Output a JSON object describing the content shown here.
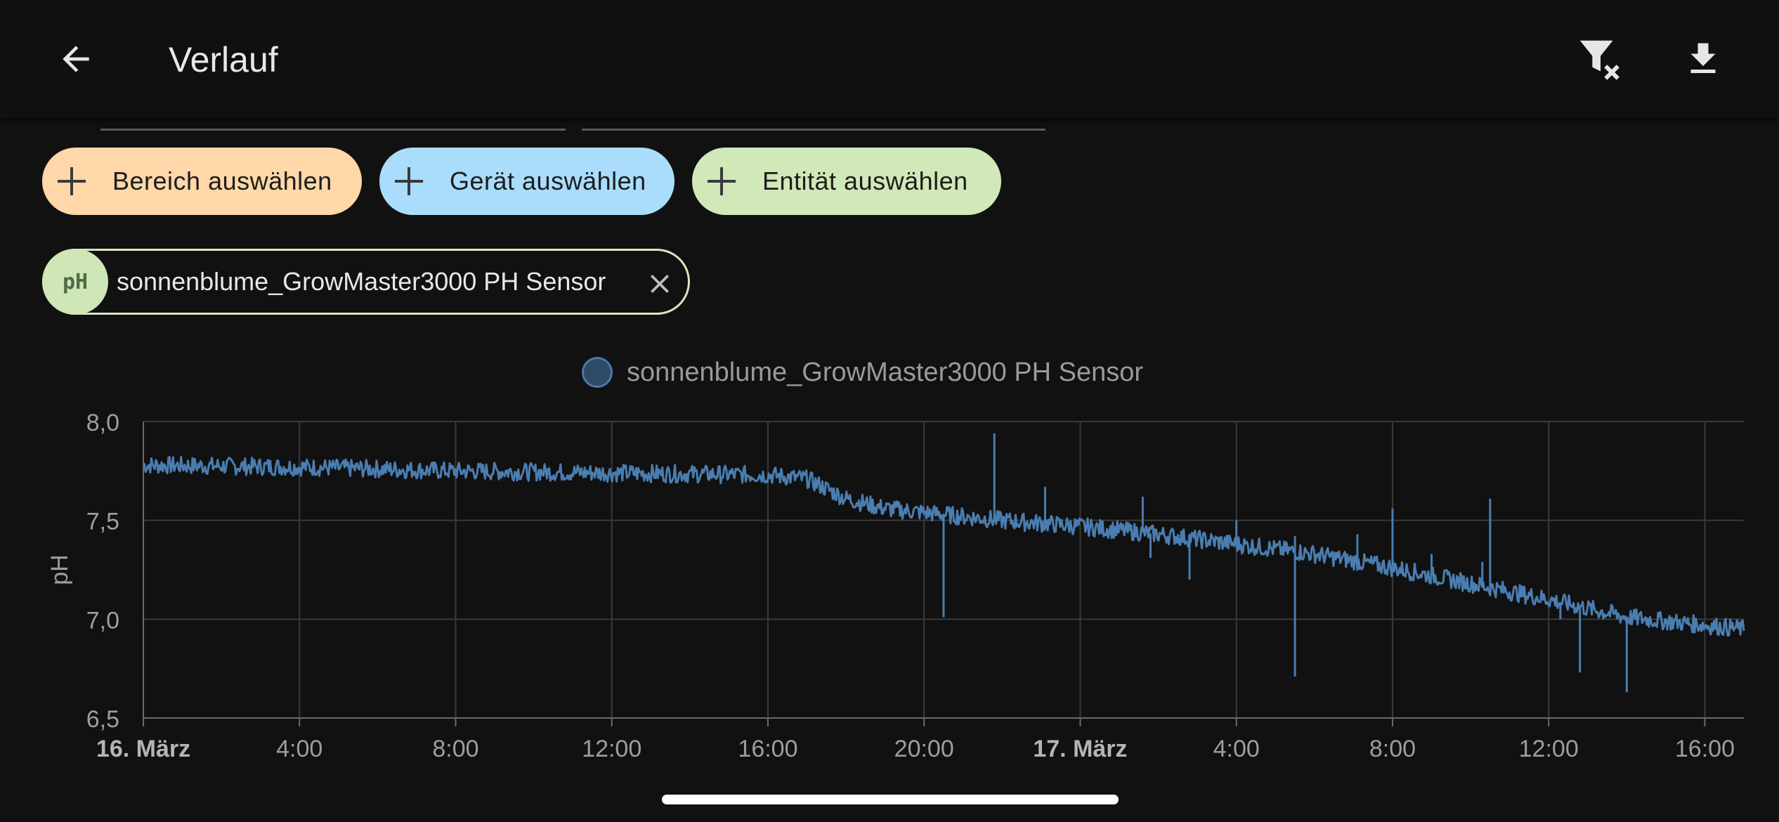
{
  "header": {
    "title": "Verlauf",
    "back_icon": "arrow-left-icon",
    "filter_clear_icon": "filter-remove-icon",
    "download_icon": "download-icon"
  },
  "filters": {
    "area": {
      "label": "Bereich auswählen",
      "color": "#ffd7a8",
      "icon": "plus-icon"
    },
    "device": {
      "label": "Gerät auswählen",
      "color": "#a9ddfb",
      "icon": "plus-icon"
    },
    "entity": {
      "label": "Entität auswählen",
      "color": "#d1e8b8",
      "icon": "plus-icon"
    }
  },
  "selected_entity": {
    "badge": "pH",
    "label": "sonnenblume_GrowMaster3000 PH Sensor",
    "remove_icon": "close-icon"
  },
  "chart_data": {
    "type": "line",
    "legend": "sonnenblume_GrowMaster3000 PH Sensor",
    "ylabel": "pH",
    "xlabel": "",
    "ylim": [
      6.5,
      8.0
    ],
    "yticks": [
      "8,0",
      "7,5",
      "7,0",
      "6,5"
    ],
    "xlim": [
      0,
      41
    ],
    "xticks": [
      {
        "label": "16. März",
        "bold": true
      },
      {
        "label": "4:00",
        "bold": false
      },
      {
        "label": "8:00",
        "bold": false
      },
      {
        "label": "12:00",
        "bold": false
      },
      {
        "label": "16:00",
        "bold": false
      },
      {
        "label": "20:00",
        "bold": false
      },
      {
        "label": "17. März",
        "bold": true
      },
      {
        "label": "4:00",
        "bold": false
      },
      {
        "label": "8:00",
        "bold": false
      },
      {
        "label": "12:00",
        "bold": false
      },
      {
        "label": "16:00",
        "bold": false
      }
    ],
    "series_color": "#4a7db0",
    "series": [
      {
        "name": "sonnenblume_GrowMaster3000 PH Sensor",
        "band": [
          {
            "x": 0.0,
            "y": 7.78
          },
          {
            "x": 4.0,
            "y": 7.77
          },
          {
            "x": 8.0,
            "y": 7.75
          },
          {
            "x": 12.0,
            "y": 7.74
          },
          {
            "x": 16.0,
            "y": 7.73
          },
          {
            "x": 17.0,
            "y": 7.71
          },
          {
            "x": 18.0,
            "y": 7.61
          },
          {
            "x": 19.0,
            "y": 7.56
          },
          {
            "x": 20.0,
            "y": 7.54
          },
          {
            "x": 22.0,
            "y": 7.5
          },
          {
            "x": 24.0,
            "y": 7.47
          },
          {
            "x": 26.0,
            "y": 7.43
          },
          {
            "x": 28.0,
            "y": 7.38
          },
          {
            "x": 30.0,
            "y": 7.33
          },
          {
            "x": 32.0,
            "y": 7.26
          },
          {
            "x": 34.0,
            "y": 7.18
          },
          {
            "x": 36.0,
            "y": 7.1
          },
          {
            "x": 38.0,
            "y": 7.01
          },
          {
            "x": 39.0,
            "y": 6.99
          },
          {
            "x": 40.0,
            "y": 6.97
          },
          {
            "x": 41.0,
            "y": 6.95
          }
        ],
        "spikes": [
          {
            "x": 21.8,
            "y": 7.94
          },
          {
            "x": 20.5,
            "y": 7.01
          },
          {
            "x": 23.1,
            "y": 7.67
          },
          {
            "x": 25.6,
            "y": 7.62
          },
          {
            "x": 25.8,
            "y": 7.31
          },
          {
            "x": 28.0,
            "y": 7.5
          },
          {
            "x": 26.8,
            "y": 7.2
          },
          {
            "x": 29.5,
            "y": 7.42
          },
          {
            "x": 29.5,
            "y": 6.71
          },
          {
            "x": 31.1,
            "y": 7.43
          },
          {
            "x": 32.0,
            "y": 7.56
          },
          {
            "x": 33.0,
            "y": 7.33
          },
          {
            "x": 34.5,
            "y": 7.61
          },
          {
            "x": 34.3,
            "y": 7.29
          },
          {
            "x": 36.8,
            "y": 6.73
          },
          {
            "x": 38.0,
            "y": 6.63
          },
          {
            "x": 36.3,
            "y": 7.0
          }
        ]
      }
    ],
    "grid": true
  }
}
